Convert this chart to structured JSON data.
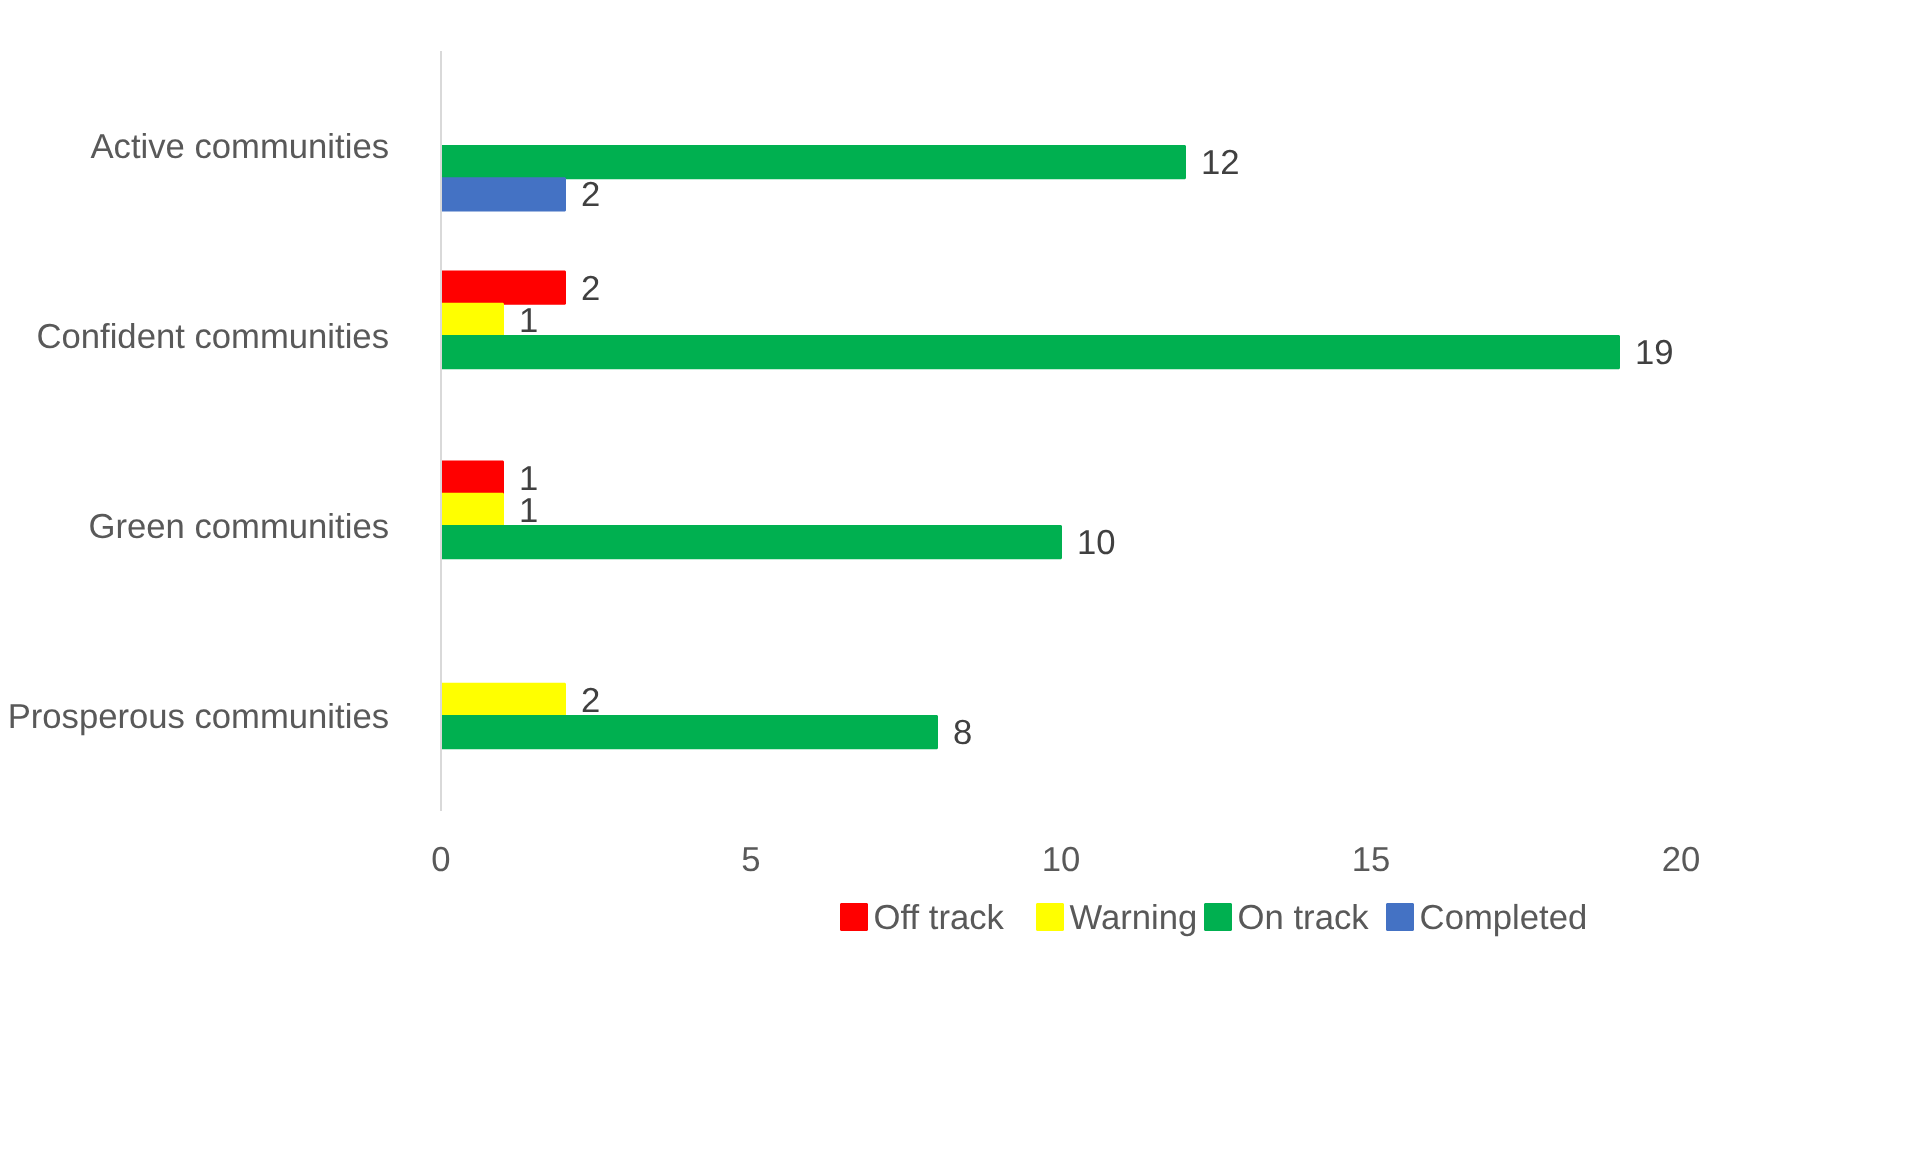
{
  "chart_data": {
    "type": "bar",
    "orientation": "horizontal",
    "categories": [
      "Active communities",
      "Confident communities",
      "Green communities",
      "Prosperous communities"
    ],
    "series": [
      {
        "name": "Off track",
        "color": "#ff0000",
        "values": [
          null,
          2,
          1,
          null
        ]
      },
      {
        "name": "Warning",
        "color": "#ffff00",
        "values": [
          null,
          1,
          1,
          2
        ]
      },
      {
        "name": "On track",
        "color": "#00b050",
        "values": [
          12,
          19,
          10,
          8
        ]
      },
      {
        "name": "Completed",
        "color": "#4472c4",
        "values": [
          2,
          null,
          null,
          null
        ]
      }
    ],
    "xlim": [
      0,
      20
    ],
    "xticks": [
      0,
      5,
      10,
      15,
      20
    ],
    "data_labels": true,
    "grid": false,
    "legend": "bottom"
  }
}
